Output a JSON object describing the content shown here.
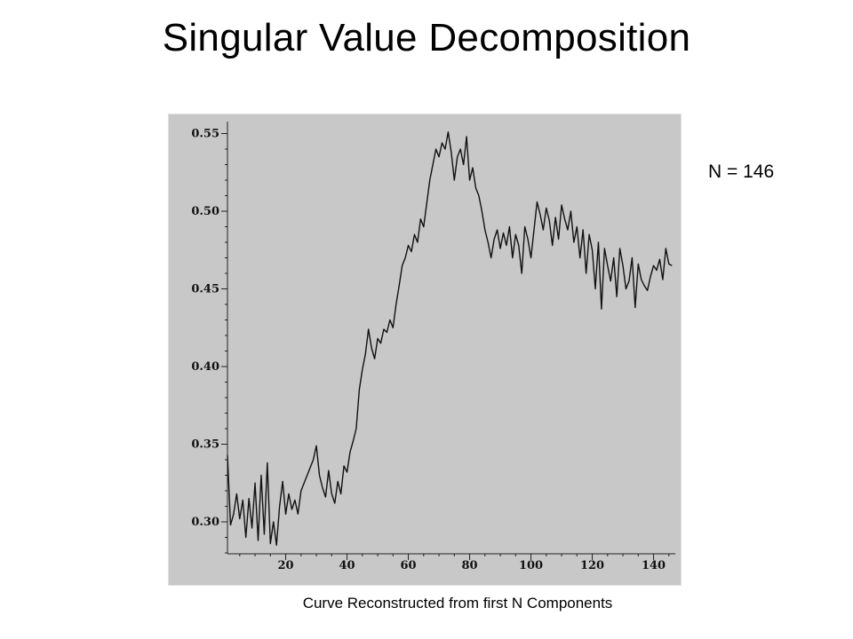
{
  "slide": {
    "title": "Singular Value Decomposition",
    "n_label": "N = 146",
    "caption": "Curve Reconstructed from first N Components"
  },
  "colors": {
    "plot_background": "#c8c8c8",
    "line": "#111111",
    "axis": "#222222"
  },
  "chart_data": {
    "type": "line",
    "title": "",
    "xlabel": "",
    "ylabel": "",
    "xlim": [
      1,
      146
    ],
    "ylim": [
      0.28,
      0.56
    ],
    "grid": false,
    "legend": "none",
    "x_ticks": [
      20,
      40,
      60,
      80,
      100,
      120,
      140
    ],
    "x_tick_labels": [
      "20",
      "40",
      "60",
      "80",
      "100",
      "120",
      "140"
    ],
    "y_ticks": [
      0.3,
      0.35,
      0.4,
      0.45,
      0.5,
      0.55
    ],
    "y_tick_labels": [
      "0.30",
      "0.35",
      "0.40",
      "0.45",
      "0.50",
      "0.55"
    ],
    "series": [
      {
        "x_start": 1,
        "x_step": 1,
        "values": [
          0.343,
          0.298,
          0.305,
          0.318,
          0.302,
          0.314,
          0.29,
          0.315,
          0.296,
          0.325,
          0.288,
          0.33,
          0.292,
          0.338,
          0.286,
          0.3,
          0.285,
          0.31,
          0.326,
          0.305,
          0.318,
          0.308,
          0.314,
          0.305,
          0.32,
          0.325,
          0.33,
          0.335,
          0.34,
          0.349,
          0.33,
          0.322,
          0.316,
          0.333,
          0.318,
          0.312,
          0.326,
          0.318,
          0.336,
          0.332,
          0.345,
          0.352,
          0.36,
          0.385,
          0.398,
          0.408,
          0.424,
          0.412,
          0.405,
          0.418,
          0.415,
          0.424,
          0.422,
          0.43,
          0.425,
          0.44,
          0.452,
          0.465,
          0.47,
          0.478,
          0.474,
          0.485,
          0.48,
          0.495,
          0.49,
          0.505,
          0.52,
          0.53,
          0.54,
          0.535,
          0.544,
          0.54,
          0.551,
          0.538,
          0.52,
          0.535,
          0.54,
          0.53,
          0.548,
          0.52,
          0.528,
          0.515,
          0.51,
          0.5,
          0.488,
          0.48,
          0.47,
          0.482,
          0.488,
          0.476,
          0.486,
          0.478,
          0.49,
          0.47,
          0.485,
          0.478,
          0.46,
          0.49,
          0.482,
          0.47,
          0.488,
          0.506,
          0.498,
          0.488,
          0.502,
          0.494,
          0.478,
          0.496,
          0.482,
          0.504,
          0.495,
          0.488,
          0.5,
          0.48,
          0.49,
          0.47,
          0.488,
          0.46,
          0.485,
          0.475,
          0.45,
          0.48,
          0.437,
          0.476,
          0.465,
          0.455,
          0.47,
          0.445,
          0.476,
          0.465,
          0.45,
          0.455,
          0.47,
          0.438,
          0.466,
          0.456,
          0.452,
          0.449,
          0.458,
          0.465,
          0.462,
          0.469,
          0.456,
          0.476,
          0.466,
          0.465
        ]
      }
    ]
  }
}
